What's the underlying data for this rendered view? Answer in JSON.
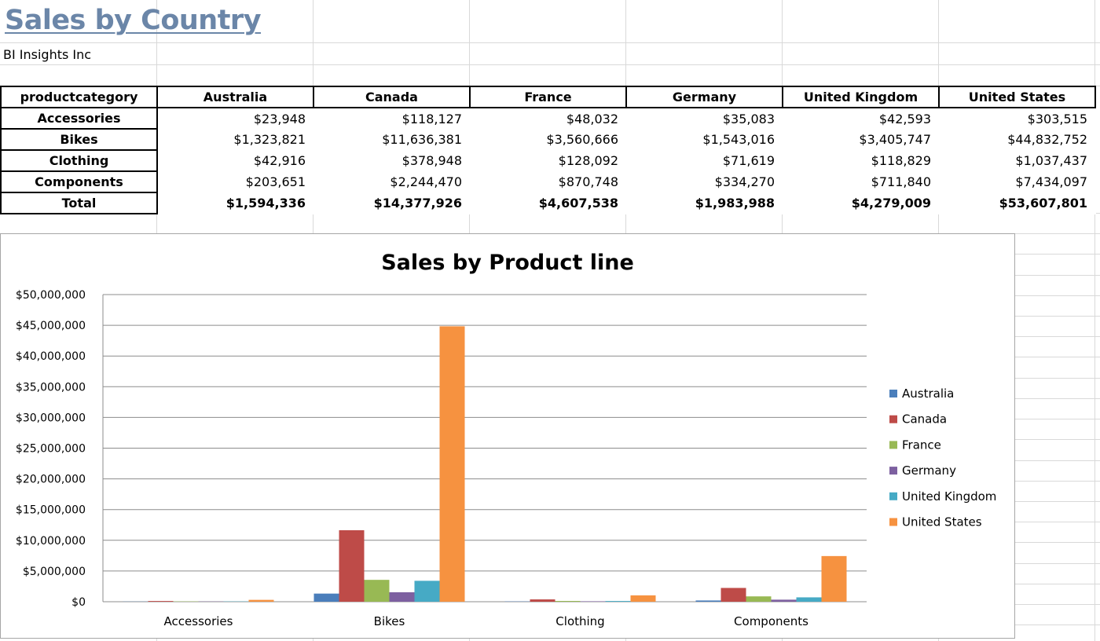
{
  "page": {
    "title": "Sales by Country",
    "subtitle": "BI Insights Inc"
  },
  "table": {
    "headers": [
      "productcategory",
      "Australia",
      "Canada",
      "France",
      "Germany",
      "United Kingdom",
      "United States"
    ],
    "rows": [
      {
        "label": "Accessories",
        "cells": [
          "$23,948",
          "$118,127",
          "$48,032",
          "$35,083",
          "$42,593",
          "$303,515"
        ]
      },
      {
        "label": "Bikes",
        "cells": [
          "$1,323,821",
          "$11,636,381",
          "$3,560,666",
          "$1,543,016",
          "$3,405,747",
          "$44,832,752"
        ]
      },
      {
        "label": "Clothing",
        "cells": [
          "$42,916",
          "$378,948",
          "$128,092",
          "$71,619",
          "$118,829",
          "$1,037,437"
        ]
      },
      {
        "label": "Components",
        "cells": [
          "$203,651",
          "$2,244,470",
          "$870,748",
          "$334,270",
          "$711,840",
          "$7,434,097"
        ]
      },
      {
        "label": "Total",
        "cells": [
          "$1,594,336",
          "$14,377,926",
          "$4,607,538",
          "$1,983,988",
          "$4,279,009",
          "$53,607,801"
        ]
      }
    ]
  },
  "chart_data": {
    "type": "bar",
    "title": "Sales by Product line",
    "categories": [
      "Accessories",
      "Bikes",
      "Clothing",
      "Components"
    ],
    "ylim": [
      0,
      50000000
    ],
    "yticks": [
      0,
      5000000,
      10000000,
      15000000,
      20000000,
      25000000,
      30000000,
      35000000,
      40000000,
      45000000,
      50000000
    ],
    "ytick_labels": [
      "$0",
      "$5,000,000",
      "$10,000,000",
      "$15,000,000",
      "$20,000,000",
      "$25,000,000",
      "$30,000,000",
      "$35,000,000",
      "$40,000,000",
      "$45,000,000",
      "$50,000,000"
    ],
    "grid": true,
    "legend_position": "right",
    "series": [
      {
        "name": "Australia",
        "color": "#4a7ebb",
        "values": [
          23948,
          1323821,
          42916,
          203651
        ]
      },
      {
        "name": "Canada",
        "color": "#be4b48",
        "values": [
          118127,
          11636381,
          378948,
          2244470
        ]
      },
      {
        "name": "France",
        "color": "#98b954",
        "values": [
          48032,
          3560666,
          128092,
          870748
        ]
      },
      {
        "name": "Germany",
        "color": "#7d60a0",
        "values": [
          35083,
          1543016,
          71619,
          334270
        ]
      },
      {
        "name": "United Kingdom",
        "color": "#46aac5",
        "values": [
          42593,
          3405747,
          118829,
          711840
        ]
      },
      {
        "name": "United States",
        "color": "#f69240",
        "values": [
          303515,
          44832752,
          1037437,
          7434097
        ]
      }
    ]
  }
}
